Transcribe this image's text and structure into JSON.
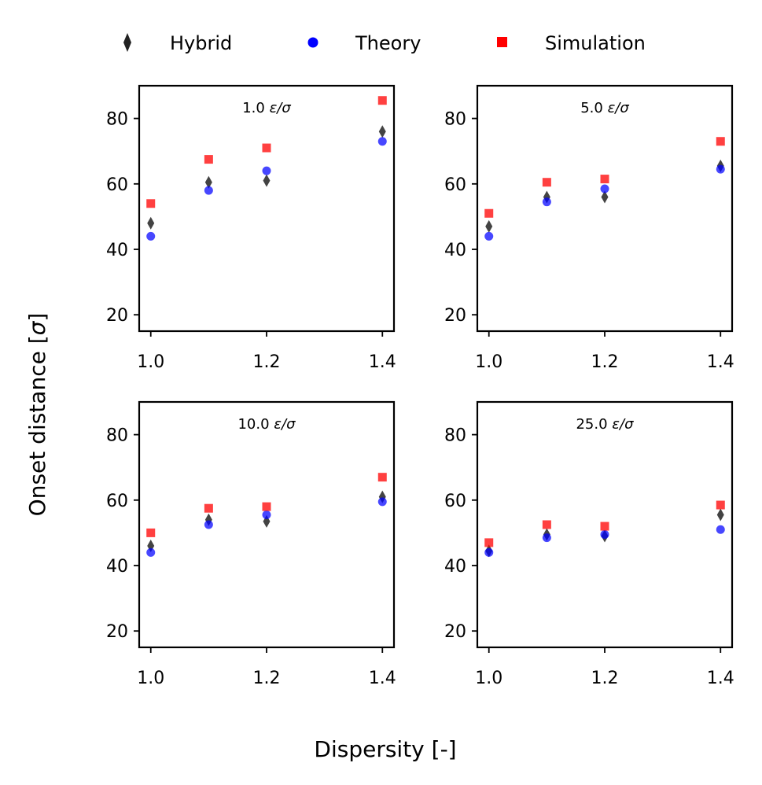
{
  "figure": {
    "xlabel": "Dispersity [-]",
    "ylabel_main": "Onset distance [",
    "ylabel_sym": "σ",
    "ylabel_close": "]"
  },
  "legend": {
    "placement": "top",
    "items": [
      {
        "label": "Hybrid",
        "marker": "diamond",
        "color": "#222222"
      },
      {
        "label": "Theory",
        "marker": "circle",
        "color": "#0000ff"
      },
      {
        "label": "Simulation",
        "marker": "square",
        "color": "#ff0000"
      }
    ]
  },
  "chart_data": [
    {
      "type": "scatter",
      "annotation_value": "1.0 ",
      "annotation_unit": "ε/σ",
      "xlim": [
        0.98,
        1.42
      ],
      "ylim": [
        15,
        90
      ],
      "xticks": [
        "1.0",
        "1.2",
        "1.4"
      ],
      "yticks": [
        "20",
        "40",
        "60",
        "80"
      ],
      "x": [
        1.0,
        1.1,
        1.2,
        1.4
      ],
      "series": [
        {
          "name": "Hybrid",
          "marker": "diamond",
          "color": "#222222",
          "values": [
            48,
            60.5,
            61,
            76
          ]
        },
        {
          "name": "Theory",
          "marker": "circle",
          "color": "#0000ff",
          "values": [
            44,
            58,
            64,
            73
          ]
        },
        {
          "name": "Simulation",
          "marker": "square",
          "color": "#ff0000",
          "values": [
            54,
            67.5,
            71,
            85.5
          ]
        }
      ]
    },
    {
      "type": "scatter",
      "annotation_value": "5.0 ",
      "annotation_unit": "ε/σ",
      "xlim": [
        0.98,
        1.42
      ],
      "ylim": [
        15,
        90
      ],
      "xticks": [
        "1.0",
        "1.2",
        "1.4"
      ],
      "yticks": [
        "20",
        "40",
        "60",
        "80"
      ],
      "x": [
        1.0,
        1.1,
        1.2,
        1.4
      ],
      "series": [
        {
          "name": "Hybrid",
          "marker": "diamond",
          "color": "#222222",
          "values": [
            47,
            56,
            56,
            65.5
          ]
        },
        {
          "name": "Theory",
          "marker": "circle",
          "color": "#0000ff",
          "values": [
            44,
            54.5,
            58.5,
            64.5
          ]
        },
        {
          "name": "Simulation",
          "marker": "square",
          "color": "#ff0000",
          "values": [
            51,
            60.5,
            61.5,
            73
          ]
        }
      ]
    },
    {
      "type": "scatter",
      "annotation_value": "10.0 ",
      "annotation_unit": "ε/σ",
      "xlim": [
        0.98,
        1.42
      ],
      "ylim": [
        15,
        90
      ],
      "xticks": [
        "1.0",
        "1.2",
        "1.4"
      ],
      "yticks": [
        "20",
        "40",
        "60",
        "80"
      ],
      "x": [
        1.0,
        1.1,
        1.2,
        1.4
      ],
      "series": [
        {
          "name": "Hybrid",
          "marker": "diamond",
          "color": "#222222",
          "values": [
            46,
            54,
            53.5,
            61
          ]
        },
        {
          "name": "Theory",
          "marker": "circle",
          "color": "#0000ff",
          "values": [
            44,
            52.5,
            55.5,
            59.5
          ]
        },
        {
          "name": "Simulation",
          "marker": "square",
          "color": "#ff0000",
          "values": [
            50,
            57.5,
            58,
            67
          ]
        }
      ]
    },
    {
      "type": "scatter",
      "annotation_value": "25.0 ",
      "annotation_unit": "ε/σ",
      "xlim": [
        0.98,
        1.42
      ],
      "ylim": [
        15,
        90
      ],
      "xticks": [
        "1.0",
        "1.2",
        "1.4"
      ],
      "yticks": [
        "20",
        "40",
        "60",
        "80"
      ],
      "x": [
        1.0,
        1.1,
        1.2,
        1.4
      ],
      "series": [
        {
          "name": "Hybrid",
          "marker": "diamond",
          "color": "#222222",
          "values": [
            44.5,
            49.5,
            49,
            55.5
          ]
        },
        {
          "name": "Theory",
          "marker": "circle",
          "color": "#0000ff",
          "values": [
            44,
            48.5,
            49.5,
            51
          ]
        },
        {
          "name": "Simulation",
          "marker": "square",
          "color": "#ff0000",
          "values": [
            47,
            52.5,
            52,
            58.5
          ]
        }
      ]
    }
  ]
}
